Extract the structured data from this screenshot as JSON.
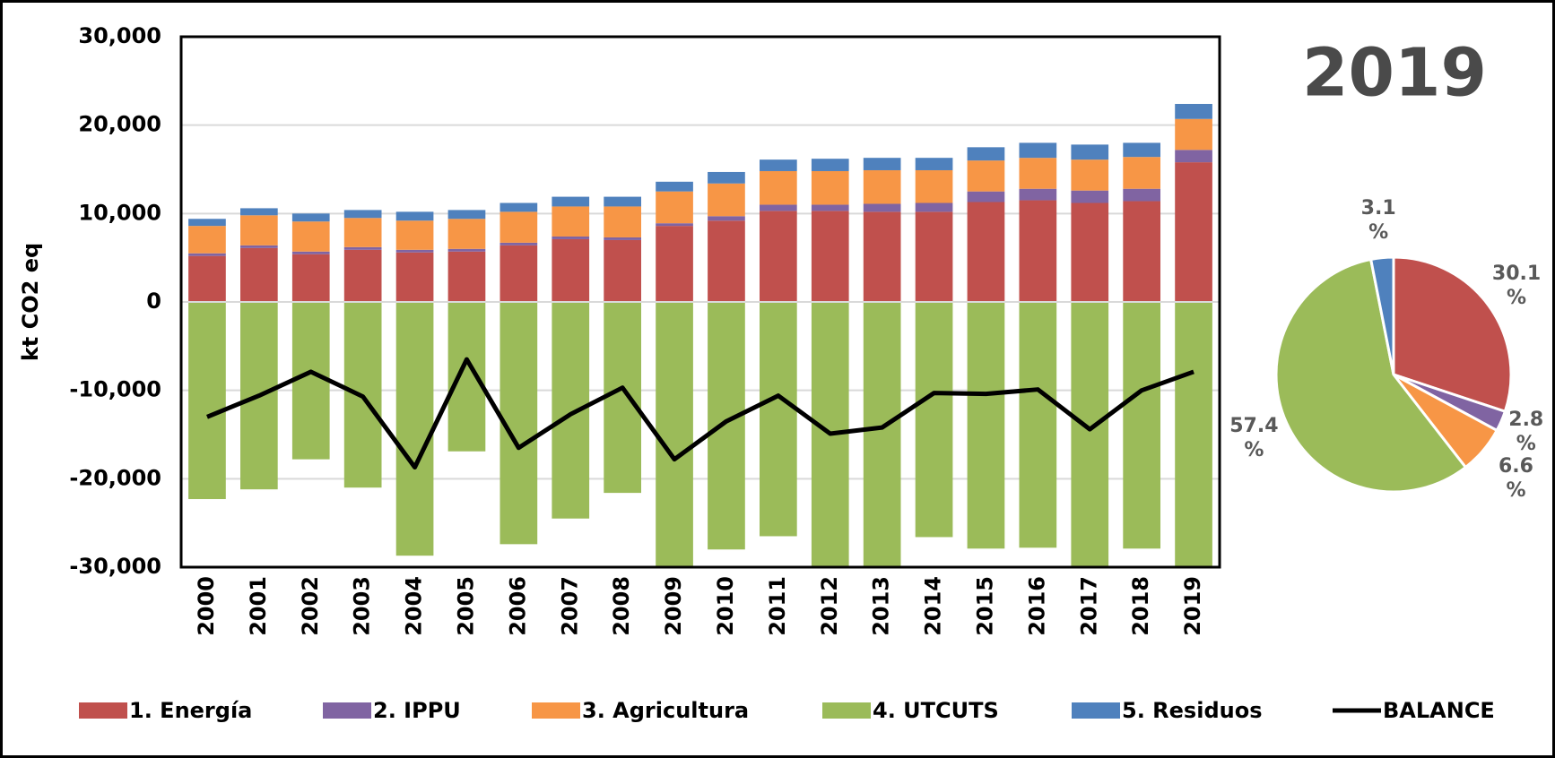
{
  "chart_data": [
    {
      "type": "bar",
      "stacked": true,
      "y_label": "kt CO2 eq",
      "categories": [
        "2000",
        "2001",
        "2002",
        "2003",
        "2004",
        "2005",
        "2006",
        "2007",
        "2008",
        "2009",
        "2010",
        "2011",
        "2012",
        "2013",
        "2014",
        "2015",
        "2016",
        "2017",
        "2018",
        "2019"
      ],
      "series": [
        {
          "name": "1. Energía",
          "color": "#c0504d",
          "values": [
            5200,
            6100,
            5400,
            5900,
            5600,
            5700,
            6400,
            7100,
            7000,
            8600,
            9200,
            10300,
            10300,
            10200,
            10200,
            11300,
            11500,
            11200,
            11400,
            15800
          ]
        },
        {
          "name": "2. IPPU",
          "color": "#8064a2",
          "values": [
            300,
            300,
            300,
            300,
            300,
            300,
            300,
            300,
            300,
            300,
            500,
            700,
            700,
            900,
            1000,
            1200,
            1300,
            1400,
            1400,
            1400
          ]
        },
        {
          "name": "3. Agricultura",
          "color": "#f79646",
          "values": [
            3100,
            3400,
            3400,
            3300,
            3300,
            3400,
            3500,
            3400,
            3500,
            3600,
            3700,
            3800,
            3800,
            3800,
            3700,
            3500,
            3500,
            3500,
            3600,
            3500
          ]
        },
        {
          "name": "4. UTCUTS",
          "color": "#9bbb59",
          "values": [
            -22300,
            -21200,
            -17800,
            -21000,
            -28700,
            -16900,
            -27400,
            -24500,
            -21600,
            -30000,
            -28000,
            -26500,
            -30000,
            -30000,
            -26600,
            -27900,
            -27800,
            -30000,
            -27900,
            -30000
          ]
        },
        {
          "name": "5. Residuos",
          "color": "#4f81bd",
          "values": [
            800,
            800,
            900,
            900,
            1000,
            1000,
            1000,
            1100,
            1100,
            1100,
            1300,
            1300,
            1400,
            1400,
            1400,
            1500,
            1700,
            1700,
            1600,
            1700
          ]
        },
        {
          "name": "BALANCE",
          "type": "line",
          "color": "#000000",
          "values": [
            -13000,
            -10600,
            -7900,
            -10700,
            -18700,
            -6500,
            -16500,
            -12700,
            -9700,
            -17800,
            -13500,
            -10600,
            -14900,
            -14200,
            -10300,
            -10400,
            -9900,
            -14400,
            -10000,
            -7900
          ]
        }
      ],
      "ylim": [
        -30000,
        30000
      ],
      "yticks": [
        {
          "value": -30000,
          "label": "-30,000"
        },
        {
          "value": -20000,
          "label": "-20,000"
        },
        {
          "value": -10000,
          "label": "-10,000"
        },
        0,
        {
          "value": 10000,
          "label": "10,000"
        },
        {
          "value": 20000,
          "label": "20,000"
        },
        {
          "value": 30000,
          "label": "30,000"
        }
      ],
      "grid": true,
      "legend": "bottom"
    },
    {
      "type": "pie",
      "title": "2019",
      "categories": [
        "1. Energía",
        "2. IPPU",
        "3. Agricultura",
        "4. UTCUTS",
        "5. Residuos"
      ],
      "values": [
        30.1,
        2.8,
        6.6,
        57.4,
        3.1
      ],
      "value_labels": [
        "30.1 %",
        "2.8 %",
        "6.6 %",
        "57.4 %",
        "3.1 %"
      ],
      "colors": [
        "#c0504d",
        "#8064a2",
        "#f79646",
        "#9bbb59",
        "#4f81bd"
      ]
    }
  ]
}
